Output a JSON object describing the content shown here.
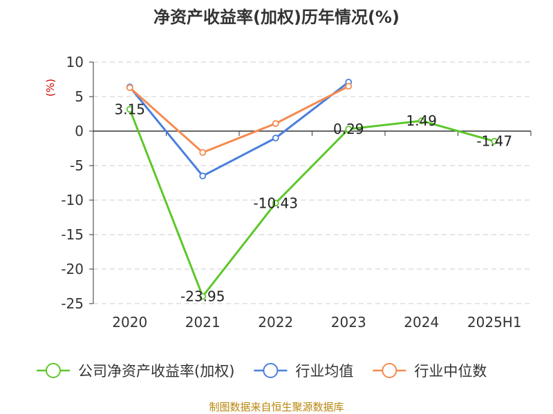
{
  "chart_data": {
    "type": "line",
    "title": "净资产收益率(加权)历年情况(%)",
    "ylabel": "(%)",
    "categories": [
      "2020",
      "2021",
      "2022",
      "2023",
      "2024",
      "2025H1"
    ],
    "ylim": [
      -25,
      10
    ],
    "yticks": [
      10,
      5,
      0,
      -5,
      -10,
      -15,
      -20,
      -25
    ],
    "grid": true,
    "legend_position": "bottom",
    "series": [
      {
        "name": "公司净资产收益率(加权)",
        "color": "#5cc72a",
        "values": [
          3.15,
          -23.95,
          -10.43,
          0.29,
          1.49,
          -1.47
        ],
        "labels": [
          "3.15",
          "-23.95",
          "-10.43",
          "0.29",
          "1.49",
          "-1.47"
        ]
      },
      {
        "name": "行业均值",
        "color": "#4a7fdc",
        "values": [
          6.4,
          -6.5,
          -1.0,
          7.1,
          null,
          null
        ]
      },
      {
        "name": "行业中位数",
        "color": "#f58a4e",
        "values": [
          6.3,
          -3.1,
          1.1,
          6.5,
          null,
          null
        ]
      }
    ],
    "source": "制图数据来自恒生聚源数据库"
  }
}
